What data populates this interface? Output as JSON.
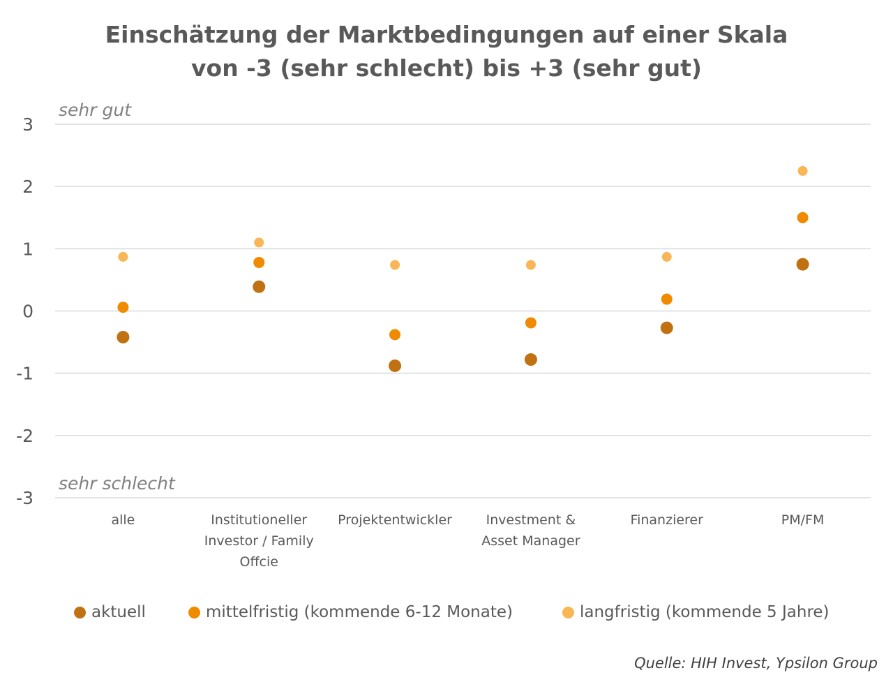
{
  "chart_data": {
    "type": "scatter",
    "title": "Einschätzung der Marktbedingungen auf einer Skala",
    "subtitle": "von -3 (sehr schlecht) bis +3 (sehr gut)",
    "categories": [
      "alle",
      "Institutioneller Investor / Family Offcie",
      "Projektentwickler",
      "Investment & Asset Manager",
      "Finanzierer",
      "PM/FM"
    ],
    "series": [
      {
        "name": "aktuell",
        "color": "#C07213",
        "values": [
          -0.42,
          0.39,
          -0.88,
          -0.78,
          -0.27,
          0.75
        ]
      },
      {
        "name": "mittelfristig (kommende 6-12 Monate)",
        "color": "#F08A00",
        "values": [
          0.06,
          0.78,
          -0.38,
          -0.19,
          0.19,
          1.5
        ]
      },
      {
        "name": "langfristig (kommende 5 Jahre)",
        "color": "#F8B657",
        "values": [
          0.87,
          1.1,
          0.74,
          0.74,
          0.87,
          2.25
        ]
      }
    ],
    "ylim": [
      -3,
      3
    ],
    "yticks": [
      "3",
      "2",
      "1",
      "0",
      "-1",
      "-2",
      "-3"
    ],
    "grid": true,
    "legend": "bottom",
    "annotations": {
      "top": "sehr gut",
      "bottom": "sehr schlecht"
    }
  },
  "source": "Quelle: HIH Invest, Ypsilon Group"
}
